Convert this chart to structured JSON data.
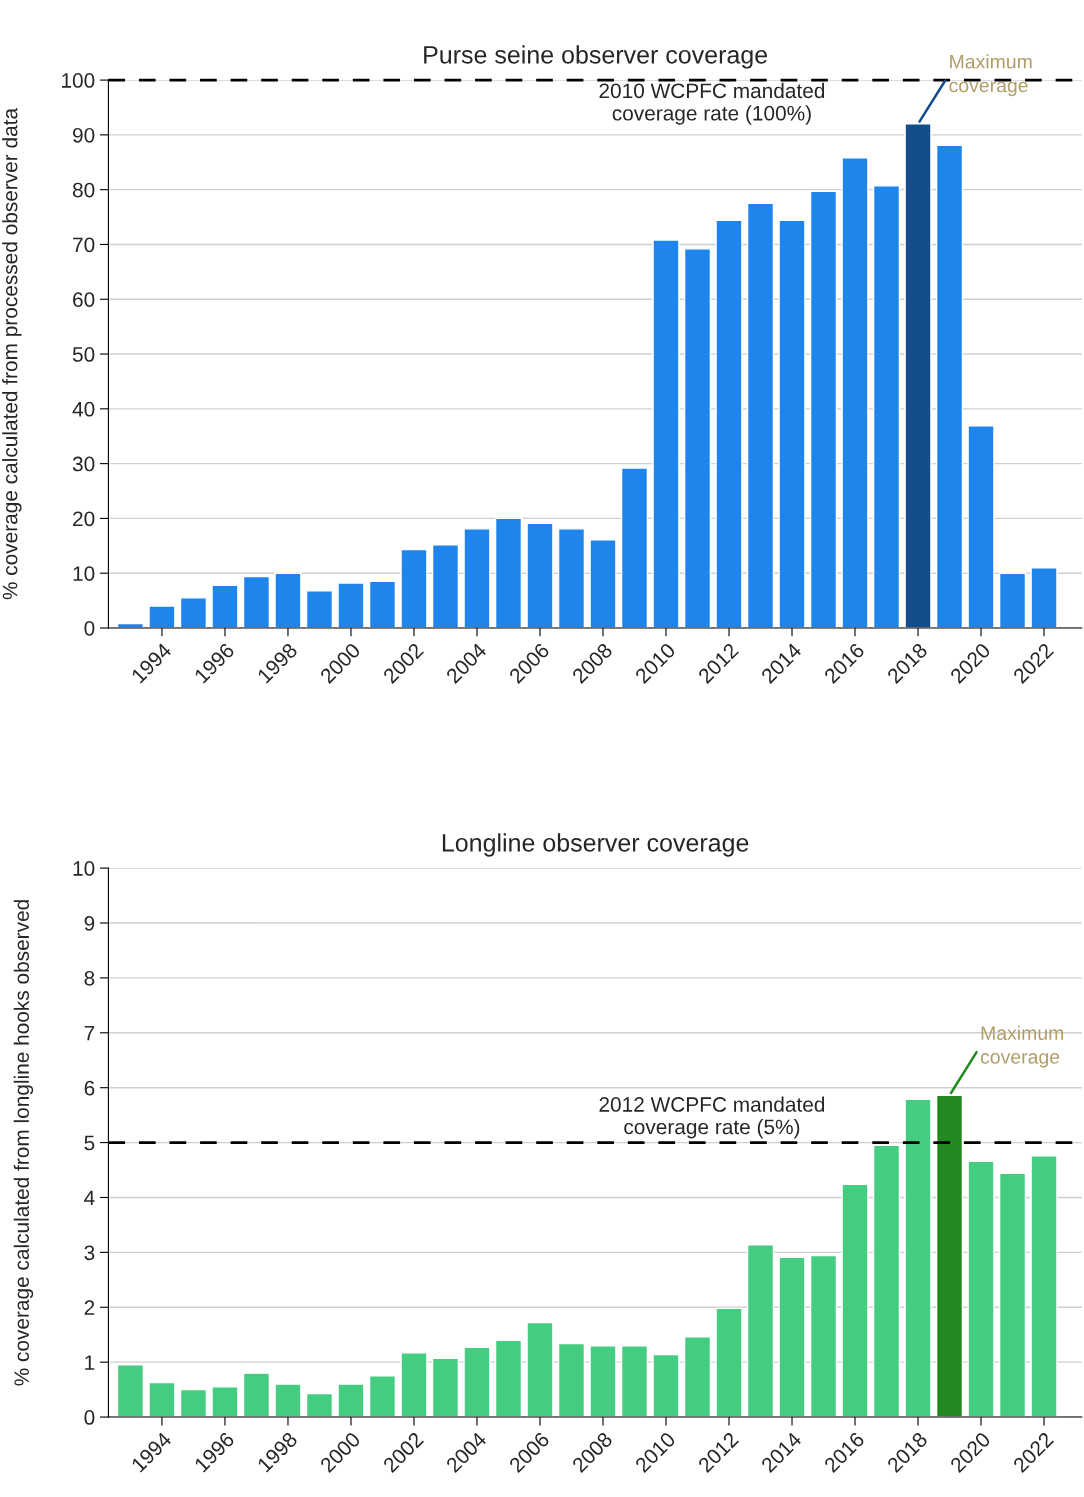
{
  "chart_data": [
    {
      "type": "bar",
      "title": "Purse seine observer coverage",
      "ylabel": "% coverage calculated from processed observer data",
      "x": [
        1993,
        1994,
        1995,
        1996,
        1997,
        1998,
        1999,
        2000,
        2001,
        2002,
        2003,
        2004,
        2005,
        2006,
        2007,
        2008,
        2009,
        2010,
        2011,
        2012,
        2013,
        2014,
        2015,
        2016,
        2017,
        2018,
        2019,
        2020,
        2021,
        2022
      ],
      "values": [
        0.8,
        4,
        5.5,
        7.8,
        9.4,
        10,
        6.8,
        8.2,
        8.5,
        14.3,
        15.2,
        18.1,
        20,
        19.1,
        18.1,
        16.1,
        29.2,
        70.8,
        69.2,
        74.4,
        77.5,
        74.4,
        79.7,
        85.8,
        80.7,
        92,
        88.1,
        36.9,
        10,
        11
      ],
      "colors": [
        "#1e85ed",
        "#1e85ed",
        "#1e85ed",
        "#1e85ed",
        "#1e85ed",
        "#1e85ed",
        "#1e85ed",
        "#1e85ed",
        "#1e85ed",
        "#1e85ed",
        "#1e85ed",
        "#1e85ed",
        "#1e85ed",
        "#1e85ed",
        "#1e85ed",
        "#1e85ed",
        "#1e85ed",
        "#1e85ed",
        "#1e85ed",
        "#1e85ed",
        "#1e85ed",
        "#1e85ed",
        "#1e85ed",
        "#1e85ed",
        "#1e85ed",
        "#134d8a",
        "#1e85ed",
        "#1e85ed",
        "#1e85ed",
        "#1e85ed"
      ],
      "xlim": [
        1992.3,
        2023.2
      ],
      "xticks": [
        1994,
        1996,
        1998,
        2000,
        2002,
        2004,
        2006,
        2008,
        2010,
        2012,
        2014,
        2016,
        2018,
        2020,
        2022
      ],
      "ylim": [
        0,
        100
      ],
      "yticks": [
        0,
        10,
        20,
        30,
        40,
        50,
        60,
        70,
        80,
        90,
        100
      ],
      "grid": "y",
      "ref_lines": [
        {
          "axis": "y",
          "value": 100,
          "label": "2010 WCPFC mandated\ncoverage rate (100%)",
          "color": "#000000",
          "line_style": "dashed"
        }
      ],
      "annotations": [
        {
          "text": "Maximum\ncoverage",
          "x": 2018,
          "y": 92
        }
      ]
    },
    {
      "type": "bar",
      "title": "Longline observer coverage",
      "ylabel": "% coverage calculated from longline hooks observed",
      "x": [
        1993,
        1994,
        1995,
        1996,
        1997,
        1998,
        1999,
        2000,
        2001,
        2002,
        2003,
        2004,
        2005,
        2006,
        2007,
        2008,
        2009,
        2010,
        2011,
        2012,
        2013,
        2014,
        2015,
        2016,
        2017,
        2018,
        2019,
        2020,
        2021,
        2022
      ],
      "values": [
        0.95,
        0.63,
        0.5,
        0.55,
        0.8,
        0.6,
        0.43,
        0.6,
        0.75,
        1.17,
        1.07,
        1.27,
        1.4,
        1.72,
        1.34,
        1.3,
        1.3,
        1.14,
        1.46,
        1.98,
        3.14,
        2.91,
        2.94,
        4.24,
        4.95,
        5.79,
        5.86,
        4.66,
        4.44,
        4.76
      ],
      "colors": [
        "#44cc80",
        "#44cc80",
        "#44cc80",
        "#44cc80",
        "#44cc80",
        "#44cc80",
        "#44cc80",
        "#44cc80",
        "#44cc80",
        "#44cc80",
        "#44cc80",
        "#44cc80",
        "#44cc80",
        "#44cc80",
        "#44cc80",
        "#44cc80",
        "#44cc80",
        "#44cc80",
        "#44cc80",
        "#44cc80",
        "#44cc80",
        "#44cc80",
        "#44cc80",
        "#44cc80",
        "#44cc80",
        "#44cc80",
        "#238a22",
        "#44cc80",
        "#44cc80",
        "#44cc80"
      ],
      "xlim": [
        1992.3,
        2023.2
      ],
      "xticks": [
        1994,
        1996,
        1998,
        2000,
        2002,
        2004,
        2006,
        2008,
        2010,
        2012,
        2014,
        2016,
        2018,
        2020,
        2022
      ],
      "ylim": [
        0,
        10
      ],
      "yticks": [
        0,
        1,
        2,
        3,
        4,
        5,
        6,
        7,
        8,
        9,
        10
      ],
      "grid": "y",
      "ref_lines": [
        {
          "axis": "y",
          "value": 5,
          "label": "2012 WCPFC mandated\ncoverage rate (5%)",
          "color": "#000000",
          "line_style": "dashed"
        }
      ],
      "annotations": [
        {
          "text": "Maximum\ncoverage",
          "x": 2019,
          "y": 5.86
        }
      ]
    }
  ]
}
